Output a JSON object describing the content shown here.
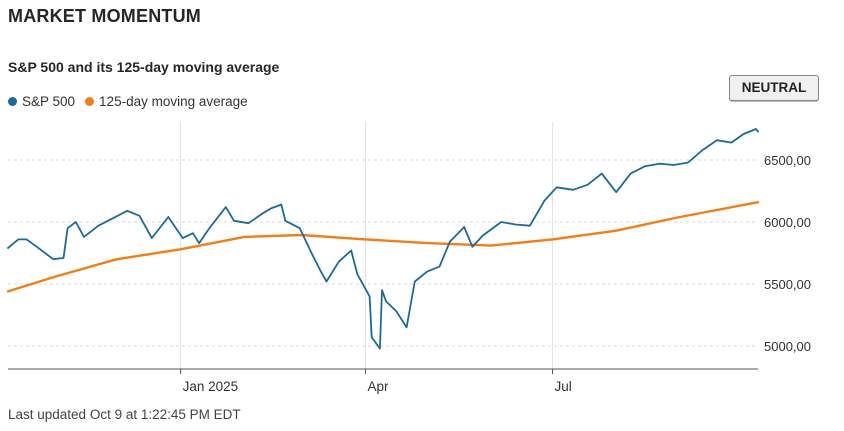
{
  "header": {
    "title": "MARKET MOMENTUM",
    "subtitle": "S&P 500 and its 125-day moving average",
    "badge": "NEUTRAL"
  },
  "legend": [
    {
      "label": "S&P 500",
      "color": "#1c6b96"
    },
    {
      "label": "125-day moving average",
      "color": "#f07f1a"
    }
  ],
  "footer": {
    "last_updated": "Last updated Oct 9 at 1:22:45 PM EDT"
  },
  "chart_data": {
    "type": "line",
    "title": "S&P 500 and its 125-day moving average",
    "xlabel": "",
    "ylabel": "",
    "x_range": [
      "2024-10-09",
      "2025-10-09"
    ],
    "ylim": [
      4800,
      6800
    ],
    "y_ticks": [
      {
        "value": 5000,
        "label": "5000,00"
      },
      {
        "value": 5500,
        "label": "5500,00"
      },
      {
        "value": 6000,
        "label": "6000,00"
      },
      {
        "value": 6500,
        "label": "6500,00"
      }
    ],
    "x_ticks": [
      {
        "date": "2025-01-01",
        "label": "Jan 2025"
      },
      {
        "date": "2025-04-01",
        "label": "Apr"
      },
      {
        "date": "2025-07-01",
        "label": "Jul"
      }
    ],
    "grid": true,
    "series": [
      {
        "name": "S&P 500",
        "color": "#1c6b96",
        "points": [
          [
            "2024-10-09",
            5790
          ],
          [
            "2024-10-14",
            5860
          ],
          [
            "2024-10-18",
            5860
          ],
          [
            "2024-10-23",
            5800
          ],
          [
            "2024-10-31",
            5700
          ],
          [
            "2024-11-05",
            5710
          ],
          [
            "2024-11-07",
            5950
          ],
          [
            "2024-11-11",
            6000
          ],
          [
            "2024-11-15",
            5880
          ],
          [
            "2024-11-22",
            5970
          ],
          [
            "2024-11-29",
            6030
          ],
          [
            "2024-12-06",
            6090
          ],
          [
            "2024-12-12",
            6050
          ],
          [
            "2024-12-18",
            5870
          ],
          [
            "2024-12-26",
            6040
          ],
          [
            "2025-01-02",
            5870
          ],
          [
            "2025-01-07",
            5910
          ],
          [
            "2025-01-10",
            5830
          ],
          [
            "2025-01-15",
            5950
          ],
          [
            "2025-01-23",
            6120
          ],
          [
            "2025-01-27",
            6010
          ],
          [
            "2025-02-03",
            5990
          ],
          [
            "2025-02-10",
            6070
          ],
          [
            "2025-02-14",
            6110
          ],
          [
            "2025-02-19",
            6140
          ],
          [
            "2025-02-21",
            6010
          ],
          [
            "2025-02-28",
            5950
          ],
          [
            "2025-03-06",
            5740
          ],
          [
            "2025-03-10",
            5610
          ],
          [
            "2025-03-13",
            5520
          ],
          [
            "2025-03-19",
            5680
          ],
          [
            "2025-03-25",
            5770
          ],
          [
            "2025-03-28",
            5580
          ],
          [
            "2025-04-03",
            5400
          ],
          [
            "2025-04-04",
            5070
          ],
          [
            "2025-04-08",
            4980
          ],
          [
            "2025-04-09",
            5450
          ],
          [
            "2025-04-11",
            5360
          ],
          [
            "2025-04-16",
            5280
          ],
          [
            "2025-04-21",
            5150
          ],
          [
            "2025-04-25",
            5520
          ],
          [
            "2025-05-01",
            5600
          ],
          [
            "2025-05-07",
            5640
          ],
          [
            "2025-05-12",
            5840
          ],
          [
            "2025-05-19",
            5960
          ],
          [
            "2025-05-23",
            5800
          ],
          [
            "2025-05-28",
            5890
          ],
          [
            "2025-06-06",
            6000
          ],
          [
            "2025-06-13",
            5980
          ],
          [
            "2025-06-20",
            5970
          ],
          [
            "2025-06-27",
            6170
          ],
          [
            "2025-07-03",
            6280
          ],
          [
            "2025-07-11",
            6260
          ],
          [
            "2025-07-18",
            6300
          ],
          [
            "2025-07-25",
            6390
          ],
          [
            "2025-08-01",
            6240
          ],
          [
            "2025-08-08",
            6390
          ],
          [
            "2025-08-15",
            6450
          ],
          [
            "2025-08-22",
            6470
          ],
          [
            "2025-08-29",
            6460
          ],
          [
            "2025-09-05",
            6480
          ],
          [
            "2025-09-12",
            6580
          ],
          [
            "2025-09-19",
            6660
          ],
          [
            "2025-09-26",
            6640
          ],
          [
            "2025-10-02",
            6710
          ],
          [
            "2025-10-08",
            6750
          ],
          [
            "2025-10-09",
            6730
          ]
        ]
      },
      {
        "name": "125-day moving average",
        "color": "#f07f1a",
        "points": [
          [
            "2024-10-09",
            5440
          ],
          [
            "2024-11-01",
            5560
          ],
          [
            "2024-12-01",
            5700
          ],
          [
            "2025-01-01",
            5780
          ],
          [
            "2025-02-01",
            5880
          ],
          [
            "2025-03-01",
            5895
          ],
          [
            "2025-04-01",
            5860
          ],
          [
            "2025-05-01",
            5830
          ],
          [
            "2025-06-01",
            5810
          ],
          [
            "2025-07-01",
            5860
          ],
          [
            "2025-08-01",
            5930
          ],
          [
            "2025-09-01",
            6040
          ],
          [
            "2025-10-09",
            6160
          ]
        ]
      }
    ]
  }
}
